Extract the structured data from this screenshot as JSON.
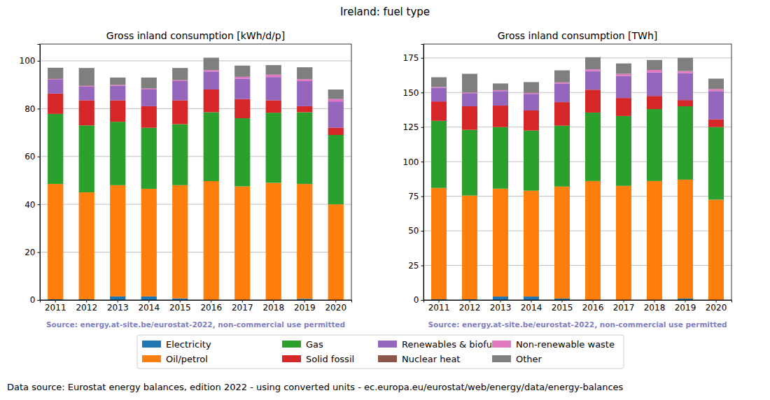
{
  "title": "Ireland: fuel type",
  "footer": "Data source: Eurostat energy balances, edition 2022 - using converted units - ec.europa.eu/eurostat/web/energy/data/energy-balances",
  "chart_data": [
    {
      "type": "bar",
      "stacked": true,
      "grid": true,
      "title": "Gross inland consumption [kWh/d/p]",
      "source": "Source: energy.at-site.be/eurostat-2022, non-commercial use permitted",
      "categories": [
        "2011",
        "2012",
        "2013",
        "2014",
        "2015",
        "2016",
        "2017",
        "2018",
        "2019",
        "2020"
      ],
      "ylim": [
        0,
        107
      ],
      "yticks": [
        0,
        20,
        40,
        60,
        80,
        100
      ],
      "series": [
        {
          "name": "Electricity",
          "color": "#1f77b4",
          "values": [
            0.3,
            0.3,
            1.5,
            1.5,
            0.7,
            0,
            0,
            0,
            0.5,
            0
          ]
        },
        {
          "name": "Oil/petrol",
          "color": "#ff7f0e",
          "values": [
            48.2,
            44.7,
            46.5,
            45,
            47.3,
            49.7,
            47.5,
            49,
            48,
            40
          ]
        },
        {
          "name": "Gas",
          "color": "#2ca02c",
          "values": [
            29.3,
            28,
            26.5,
            25.5,
            25.5,
            28.8,
            28.5,
            29.3,
            30,
            29
          ]
        },
        {
          "name": "Solid fossil",
          "color": "#d62728",
          "values": [
            8.5,
            10.5,
            9,
            9,
            10,
            9.5,
            8,
            5.2,
            2.5,
            3
          ]
        },
        {
          "name": "Renewables & biofuel",
          "color": "#9467bd",
          "values": [
            5.8,
            5.7,
            6,
            7,
            8,
            7.5,
            8.5,
            9.7,
            10.5,
            11
          ]
        },
        {
          "name": "Nuclear heat",
          "color": "#8c564b",
          "values": [
            0,
            0,
            0,
            0,
            0,
            0,
            0,
            0,
            0,
            0
          ]
        },
        {
          "name": "Non-renewable waste",
          "color": "#e377c2",
          "values": [
            0.3,
            0.3,
            0.4,
            0.4,
            0.4,
            0.6,
            0.8,
            1,
            0.8,
            1
          ]
        },
        {
          "name": "Other",
          "color": "#7f7f7f",
          "values": [
            4.7,
            7.5,
            3.1,
            4.6,
            5.1,
            5.2,
            4.7,
            4,
            5,
            4
          ]
        }
      ]
    },
    {
      "type": "bar",
      "stacked": true,
      "grid": true,
      "title": "Gross inland consumption [TWh]",
      "source": "Source: energy.at-site.be/eurostat-2022, non-commercial use permitted",
      "categories": [
        "2011",
        "2012",
        "2013",
        "2014",
        "2015",
        "2016",
        "2017",
        "2018",
        "2019",
        "2020"
      ],
      "ylim": [
        0,
        185
      ],
      "yticks": [
        0,
        25,
        50,
        75,
        100,
        125,
        150,
        175
      ],
      "series": [
        {
          "name": "Electricity",
          "color": "#1f77b4",
          "values": [
            0.5,
            0.5,
            2.5,
            2.5,
            1,
            0,
            0,
            0,
            1,
            0
          ]
        },
        {
          "name": "Oil/petrol",
          "color": "#ff7f0e",
          "values": [
            80.5,
            75,
            78,
            76.5,
            81,
            86,
            82.5,
            86,
            86,
            72.5
          ]
        },
        {
          "name": "Gas",
          "color": "#2ca02c",
          "values": [
            48.5,
            47.5,
            44.5,
            43.5,
            44,
            49.5,
            50.5,
            52,
            53,
            52.5
          ]
        },
        {
          "name": "Solid fossil",
          "color": "#d62728",
          "values": [
            14,
            17,
            15.5,
            14.5,
            17,
            16.5,
            13,
            9.5,
            4.5,
            5.5
          ]
        },
        {
          "name": "Renewables & biofuel",
          "color": "#9467bd",
          "values": [
            10,
            9.5,
            10.5,
            12,
            13.5,
            13.5,
            16,
            17,
            19.5,
            20.5
          ]
        },
        {
          "name": "Nuclear heat",
          "color": "#8c564b",
          "values": [
            0,
            0,
            0,
            0,
            0,
            0,
            0,
            0,
            0,
            0
          ]
        },
        {
          "name": "Non-renewable waste",
          "color": "#e377c2",
          "values": [
            0.5,
            0.5,
            0.7,
            0.7,
            0.8,
            1.2,
            1.5,
            1.8,
            1.5,
            1.5
          ]
        },
        {
          "name": "Other",
          "color": "#7f7f7f",
          "values": [
            7,
            13.5,
            4.8,
            7.8,
            8.7,
            8.8,
            7.5,
            7.2,
            9.5,
            7.5
          ]
        }
      ]
    }
  ]
}
